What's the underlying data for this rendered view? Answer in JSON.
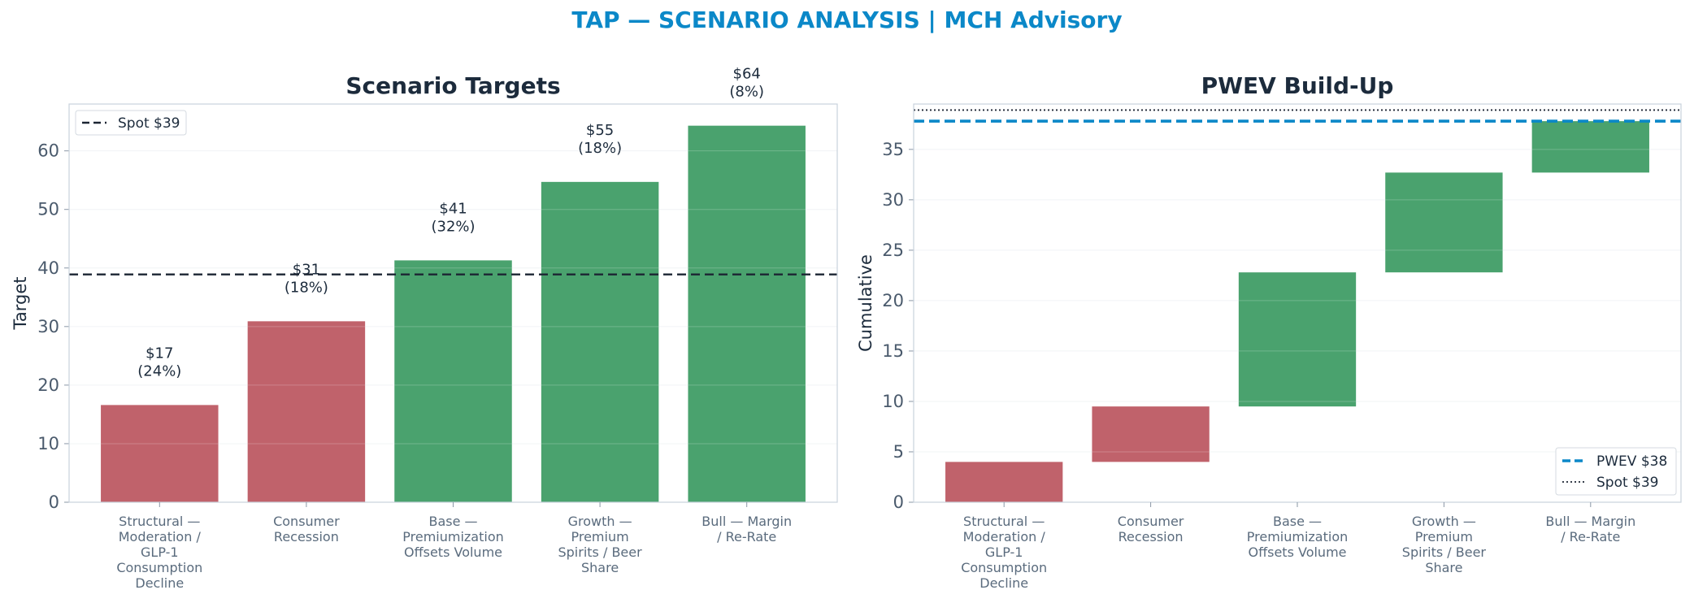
{
  "suptitle": "TAP — SCENARIO ANALYSIS | MCH Advisory",
  "colors": {
    "down": "#c0626b",
    "up": "#4aa26e",
    "pwev": "#0b88c8",
    "spot": "#1c2533",
    "title": "#0b88c8"
  },
  "chart_data": [
    {
      "type": "bar",
      "title": "Scenario Targets",
      "ylabel": "Target",
      "ylim": [
        0,
        68
      ],
      "yticks": [
        "0",
        "10",
        "20",
        "30",
        "40",
        "50",
        "60"
      ],
      "categories": [
        [
          "Structural —",
          "Moderation /",
          "GLP-1",
          "Consumption",
          "Decline"
        ],
        [
          "Consumer",
          "Recession"
        ],
        [
          "Base —",
          "Premiumization",
          "Offsets Volume"
        ],
        [
          "Growth —",
          "Premium",
          "Spirits / Beer",
          "Share"
        ],
        [
          "Bull — Margin",
          "/ Re-Rate"
        ]
      ],
      "values": [
        16.6,
        30.9,
        41.3,
        54.7,
        64.3
      ],
      "bar_colors": [
        "#c0626b",
        "#c0626b",
        "#4aa26e",
        "#4aa26e",
        "#4aa26e"
      ],
      "value_labels": [
        "$17",
        "$31",
        "$41",
        "$55",
        "$64"
      ],
      "prob_labels": [
        "(24%)",
        "(18%)",
        "(32%)",
        "(18%)",
        "(8%)"
      ],
      "reference_line": {
        "value": 38.9,
        "label": "Spot $39",
        "style": "dashed"
      },
      "legend": "top-left",
      "grid": true
    },
    {
      "type": "waterfall",
      "title": "PWEV Build-Up",
      "ylabel": "Cumulative",
      "ylim": [
        0,
        39.5
      ],
      "yticks": [
        "0",
        "5",
        "10",
        "15",
        "20",
        "25",
        "30",
        "35"
      ],
      "categories": [
        [
          "Structural —",
          "Moderation /",
          "GLP-1",
          "Consumption",
          "Decline"
        ],
        [
          "Consumer",
          "Recession"
        ],
        [
          "Base —",
          "Premiumization",
          "Offsets Volume"
        ],
        [
          "Growth —",
          "Premium",
          "Spirits / Beer",
          "Share"
        ],
        [
          "Bull — Margin",
          "/ Re-Rate"
        ]
      ],
      "segments": [
        {
          "start": 0,
          "end": 4.0
        },
        {
          "start": 4.0,
          "end": 9.5
        },
        {
          "start": 9.5,
          "end": 22.8
        },
        {
          "start": 22.8,
          "end": 32.7
        },
        {
          "start": 32.7,
          "end": 37.8
        }
      ],
      "bar_colors": [
        "#c0626b",
        "#c0626b",
        "#4aa26e",
        "#4aa26e",
        "#4aa26e"
      ],
      "reference_lines": [
        {
          "value": 37.8,
          "label": "PWEV $38",
          "style": "dashed"
        },
        {
          "value": 38.9,
          "label": "Spot $39",
          "style": "dotted"
        }
      ],
      "legend": "bottom-right",
      "grid": true
    }
  ]
}
